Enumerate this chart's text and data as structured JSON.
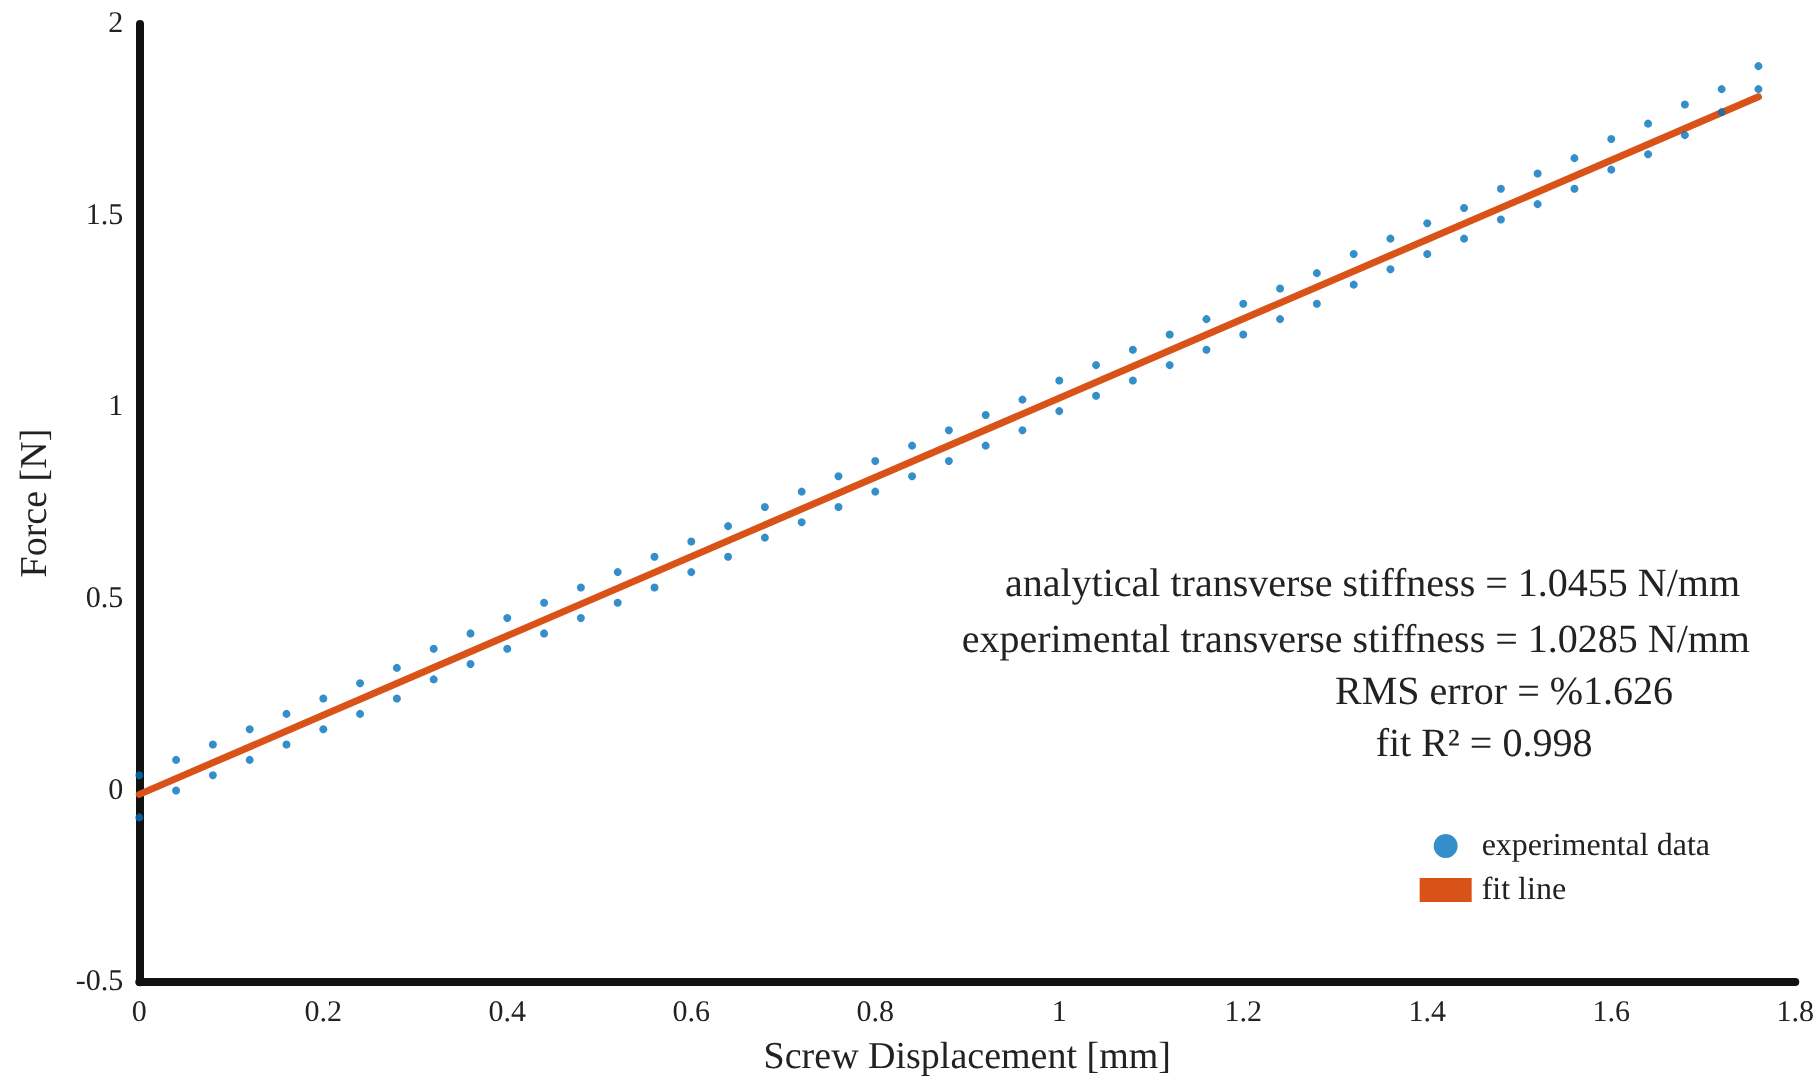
{
  "chart_data": {
    "type": "scatter",
    "xlabel": "Screw Displacement [mm]",
    "ylabel": "Force [N]",
    "xlim": [
      0,
      1.8
    ],
    "xticks": [
      0,
      0.2,
      0.4,
      0.6,
      0.8,
      1,
      1.2,
      1.4,
      1.6,
      1.8
    ],
    "ylim": [
      -0.5,
      2
    ],
    "yticks": [
      -0.5,
      0,
      0.5,
      1,
      1.5,
      2
    ],
    "grid": false,
    "legend": "bottom right",
    "marker": "circle",
    "annotations": [
      "analytical transverse stiffness = 1.0455 N/mm",
      "experimental transverse stiffness = 1.0285 N/mm",
      "RMS error = %1.626",
      "fit R² = 0.998"
    ],
    "series": [
      {
        "name": "experimental data",
        "color": "#0072bd",
        "x": [
          0,
          0,
          0.04,
          0.04,
          0.08,
          0.08,
          0.12,
          0.12,
          0.16,
          0.16,
          0.2,
          0.2,
          0.24,
          0.24,
          0.28,
          0.28,
          0.32,
          0.32,
          0.36,
          0.36,
          0.4,
          0.4,
          0.44,
          0.44,
          0.48,
          0.48,
          0.52,
          0.52,
          0.56,
          0.56,
          0.6,
          0.6,
          0.64,
          0.64,
          0.68,
          0.68,
          0.72,
          0.72,
          0.76,
          0.76,
          0.8,
          0.8,
          0.84,
          0.84,
          0.88,
          0.88,
          0.92,
          0.92,
          0.96,
          0.96,
          1,
          1,
          1.04,
          1.04,
          1.08,
          1.08,
          1.12,
          1.12,
          1.16,
          1.16,
          1.2,
          1.2,
          1.24,
          1.24,
          1.28,
          1.28,
          1.32,
          1.32,
          1.36,
          1.36,
          1.4,
          1.4,
          1.44,
          1.44,
          1.48,
          1.48,
          1.52,
          1.52,
          1.56,
          1.56,
          1.6,
          1.6,
          1.64,
          1.64,
          1.68,
          1.68,
          1.72,
          1.72,
          1.76,
          1.76
        ],
        "values": [
          -0.07,
          0.04,
          0.0,
          0.08,
          0.04,
          0.12,
          0.08,
          0.16,
          0.12,
          0.2,
          0.16,
          0.24,
          0.2,
          0.28,
          0.24,
          0.32,
          0.29,
          0.37,
          0.33,
          0.41,
          0.37,
          0.45,
          0.41,
          0.49,
          0.45,
          0.53,
          0.49,
          0.57,
          0.53,
          0.61,
          0.57,
          0.65,
          0.61,
          0.69,
          0.66,
          0.74,
          0.7,
          0.78,
          0.74,
          0.82,
          0.78,
          0.86,
          0.82,
          0.9,
          0.86,
          0.94,
          0.9,
          0.98,
          0.94,
          1.02,
          0.99,
          1.07,
          1.03,
          1.11,
          1.07,
          1.15,
          1.11,
          1.19,
          1.15,
          1.23,
          1.19,
          1.27,
          1.23,
          1.31,
          1.27,
          1.35,
          1.32,
          1.4,
          1.36,
          1.44,
          1.4,
          1.48,
          1.44,
          1.52,
          1.49,
          1.57,
          1.53,
          1.61,
          1.57,
          1.65,
          1.62,
          1.7,
          1.66,
          1.74,
          1.71,
          1.79,
          1.77,
          1.83,
          1.83,
          1.89
        ]
      },
      {
        "name": "fit line",
        "type": "line",
        "color": "#d95319",
        "marker": "none",
        "line_style": "solid",
        "x": [
          0,
          1.76
        ],
        "values": [
          -0.01,
          1.81
        ]
      }
    ]
  }
}
